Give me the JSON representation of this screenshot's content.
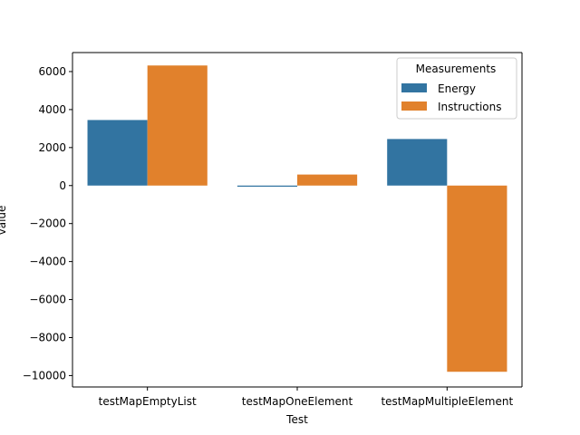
{
  "chart_data": {
    "type": "bar",
    "categories": [
      "testMapEmptyList",
      "testMapOneElement",
      "testMapMultipleElement"
    ],
    "series": [
      {
        "name": "Energy",
        "color": "#3274a1",
        "values": [
          3450,
          -60,
          2450
        ]
      },
      {
        "name": "Instructions",
        "color": "#e1812c",
        "values": [
          6320,
          580,
          -9800
        ]
      }
    ],
    "xlabel": "Test",
    "ylabel": "value",
    "ylim": [
      -10600,
      7000
    ],
    "yticks": [
      -10000,
      -8000,
      -6000,
      -4000,
      -2000,
      0,
      2000,
      4000,
      6000
    ],
    "grid": false,
    "legend": {
      "title": "Measurements",
      "placement": "top-right"
    }
  }
}
